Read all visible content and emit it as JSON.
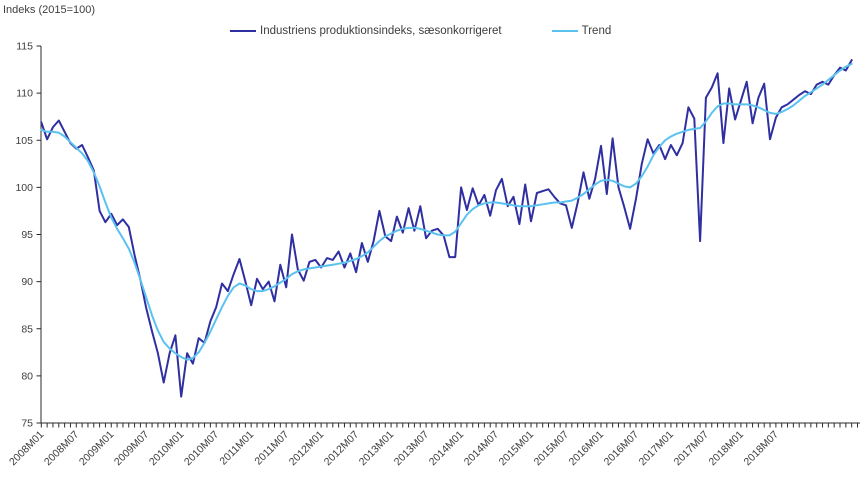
{
  "unit_label": "Indeks (2015=100)",
  "legend": {
    "series1_label": "Industriens produktionsindeks, sæsonkorrigeret",
    "series2_label": "Trend"
  },
  "colors": {
    "series1": "#2f2fa2",
    "series2": "#5bc2f0",
    "axis": "#2b2b2b",
    "text": "#3d3d3d"
  },
  "chart_data": {
    "type": "line",
    "title": "Indeks (2015=100)",
    "x_start": "2008M01",
    "frequency": "monthly",
    "n_points": 140,
    "x_tick_labels": [
      "2008M01",
      "2008M07",
      "2009M01",
      "2009M07",
      "2010M01",
      "2010M07",
      "2011M01",
      "2011M07",
      "2012M01",
      "2012M07",
      "2013M01",
      "2013M07",
      "2014M01",
      "2014M07",
      "2015M01",
      "2015M07",
      "2016M01",
      "2016M07",
      "2017M01",
      "2017M07",
      "2018M01",
      "2018M07"
    ],
    "x_label_every_n_months": 6,
    "y_ticks": [
      75,
      80,
      85,
      90,
      95,
      100,
      105,
      110,
      115
    ],
    "ylim": [
      75,
      115
    ],
    "grid": false,
    "legend_position": "top",
    "series": [
      {
        "name": "Industriens produktionsindeks, sæsonkorrigeret",
        "color": "#2f2fa2",
        "values": [
          106.9,
          105.1,
          106.4,
          107.1,
          105.9,
          104.7,
          104.1,
          104.5,
          103.2,
          101.8,
          97.5,
          96.3,
          97.2,
          96.0,
          96.6,
          95.8,
          92.8,
          90.2,
          87.2,
          84.7,
          82.4,
          79.3,
          82.4,
          84.3,
          77.8,
          82.4,
          81.3,
          84.0,
          83.5,
          85.8,
          87.3,
          89.8,
          89.0,
          90.8,
          92.4,
          90.0,
          87.5,
          90.3,
          89.2,
          90.0,
          87.9,
          91.8,
          89.4,
          95.0,
          91.3,
          90.1,
          92.1,
          92.3,
          91.5,
          92.5,
          92.3,
          93.2,
          91.5,
          93.0,
          91.0,
          94.1,
          92.1,
          94.3,
          97.5,
          94.8,
          94.3,
          96.9,
          95.2,
          97.8,
          95.4,
          98.0,
          94.6,
          95.4,
          95.6,
          94.9,
          92.6,
          92.6,
          100.0,
          97.6,
          99.9,
          98.1,
          99.2,
          97.0,
          99.7,
          100.9,
          98.0,
          99.0,
          96.1,
          100.3,
          96.4,
          99.4,
          99.6,
          99.8,
          99.0,
          98.3,
          98.1,
          95.7,
          98.4,
          101.6,
          98.8,
          100.9,
          104.4,
          99.3,
          105.2,
          100.0,
          97.9,
          95.6,
          98.8,
          102.5,
          105.1,
          103.6,
          104.5,
          103.0,
          104.5,
          103.4,
          104.7,
          108.5,
          107.3,
          94.3,
          109.5,
          110.6,
          112.1,
          104.7,
          110.5,
          107.2,
          109.2,
          111.2,
          106.8,
          109.5,
          111.0,
          105.1,
          107.4,
          108.5,
          108.8,
          109.3,
          109.8,
          110.2,
          109.9,
          110.9,
          111.2,
          110.9,
          111.9,
          112.7,
          112.4,
          113.5
        ]
      },
      {
        "name": "Trend",
        "color": "#5bc2f0",
        "values": [
          106.1,
          105.9,
          105.9,
          105.8,
          105.4,
          104.8,
          104.2,
          103.6,
          102.8,
          101.6,
          100.1,
          98.4,
          96.8,
          95.6,
          94.6,
          93.5,
          92.0,
          90.2,
          88.3,
          86.4,
          84.8,
          83.6,
          82.9,
          82.4,
          82.0,
          81.7,
          81.9,
          82.5,
          83.5,
          84.7,
          86.0,
          87.3,
          88.5,
          89.4,
          89.8,
          89.6,
          89.2,
          89.0,
          89.0,
          89.2,
          89.5,
          89.9,
          90.3,
          90.8,
          91.1,
          91.3,
          91.4,
          91.5,
          91.6,
          91.7,
          91.8,
          91.9,
          92.0,
          92.2,
          92.4,
          92.7,
          93.1,
          93.7,
          94.3,
          94.8,
          95.1,
          95.4,
          95.6,
          95.7,
          95.7,
          95.6,
          95.4,
          95.2,
          95.0,
          94.9,
          94.9,
          95.3,
          96.2,
          97.1,
          97.7,
          98.1,
          98.3,
          98.4,
          98.4,
          98.3,
          98.2,
          98.1,
          98.0,
          98.0,
          98.0,
          98.1,
          98.2,
          98.3,
          98.4,
          98.4,
          98.5,
          98.6,
          98.9,
          99.3,
          99.8,
          100.3,
          100.7,
          100.8,
          100.7,
          100.4,
          100.1,
          100.0,
          100.4,
          101.2,
          102.2,
          103.4,
          104.3,
          105.0,
          105.4,
          105.7,
          105.9,
          106.1,
          106.2,
          106.3,
          107.0,
          107.9,
          108.6,
          108.9,
          108.9,
          108.8,
          108.8,
          108.8,
          108.7,
          108.5,
          108.2,
          107.9,
          107.8,
          108.0,
          108.3,
          108.7,
          109.2,
          109.7,
          110.1,
          110.5,
          110.9,
          111.4,
          111.9,
          112.4,
          112.8,
          113.1
        ]
      }
    ]
  }
}
